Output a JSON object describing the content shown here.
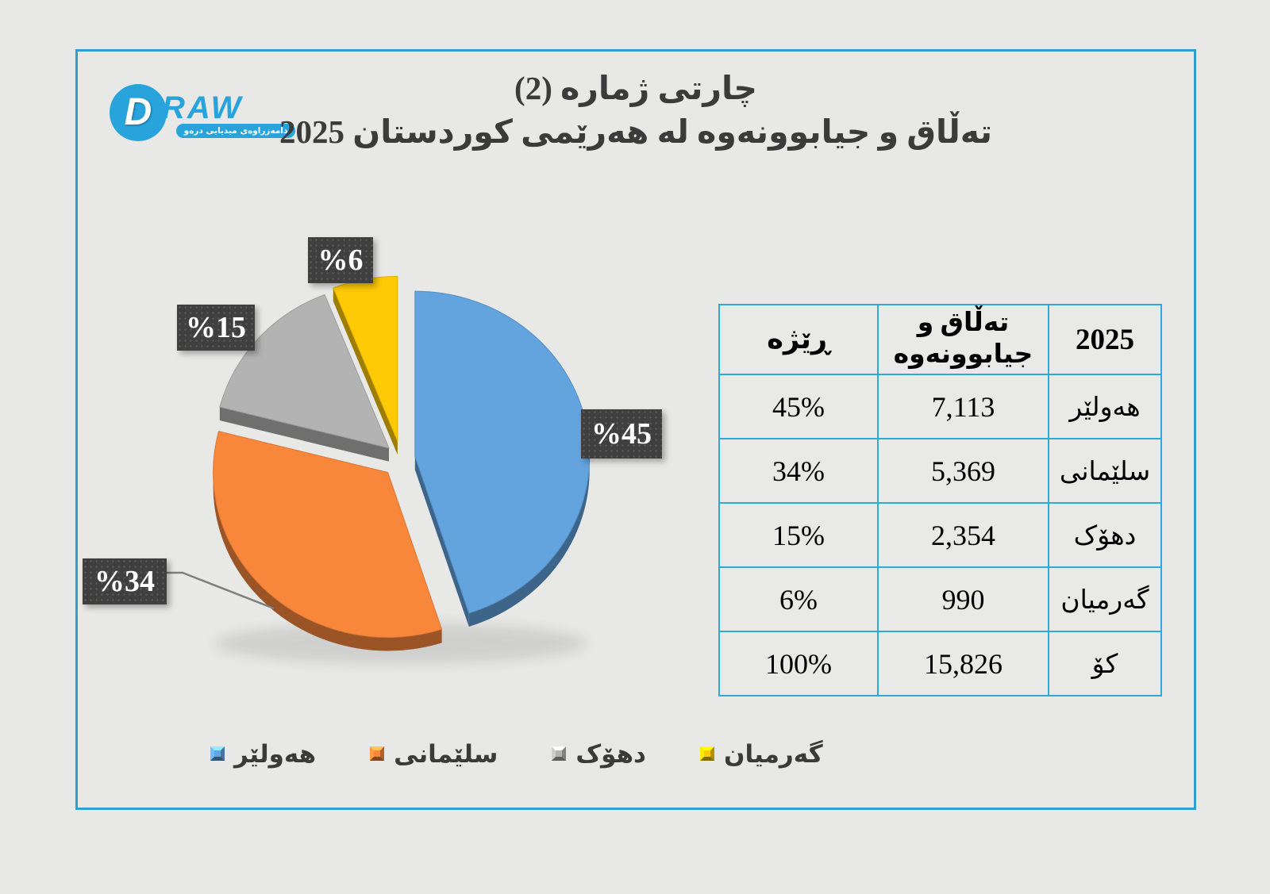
{
  "logo": {
    "letter": "D",
    "brand": "RAW",
    "tagline": "دامەزراوەی میدیایی درەو"
  },
  "title": {
    "line1": "چارتی ژمارە (2)",
    "line2": "تەڵاق و جیابوونەوە لە هەرێمی کوردستان 2025"
  },
  "chart_data": {
    "type": "pie",
    "title": "تەڵاق و جیابوونەوە لە هەرێمی کوردستان 2025",
    "categories": [
      "هەولێر",
      "سلێمانی",
      "دهۆک",
      "گەرمیان"
    ],
    "values": [
      7113,
      5369,
      2354,
      990
    ],
    "percents": [
      45,
      34,
      15,
      6
    ],
    "total": 15826,
    "colors": [
      "#63a3de",
      "#f8873c",
      "#b3b3b3",
      "#fec907"
    ],
    "labels": [
      "%45",
      "%34",
      "%15",
      "%6"
    ],
    "legend_position": "bottom",
    "style": "3d-exploded"
  },
  "table": {
    "headers": {
      "year": "2025",
      "count": "تەڵاق و جیابوونەوە",
      "rate": "ڕێژە"
    },
    "rows": [
      {
        "region": "هەولێر",
        "count": "7,113",
        "rate": "45%"
      },
      {
        "region": "سلێمانی",
        "count": "5,369",
        "rate": "34%"
      },
      {
        "region": "دهۆک",
        "count": "2,354",
        "rate": "15%"
      },
      {
        "region": "گەرمیان",
        "count": "990",
        "rate": "6%"
      },
      {
        "region": "کۆ",
        "count": "15,826",
        "rate": "100%"
      }
    ]
  }
}
